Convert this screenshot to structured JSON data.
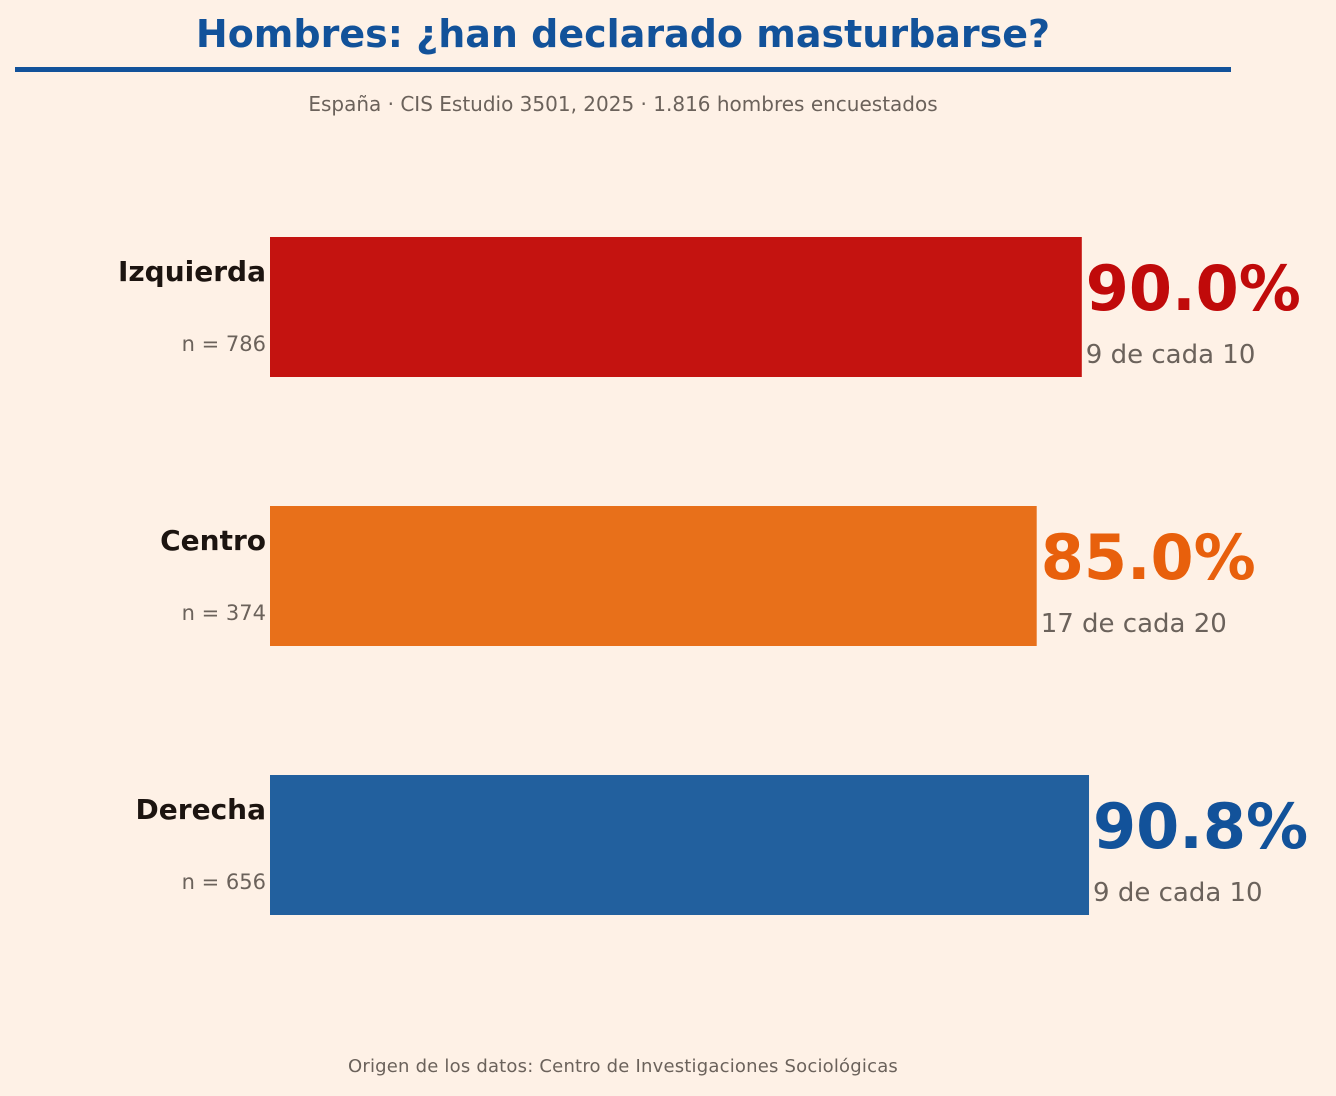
{
  "title": "Hombres: ¿han declarado masturbarse?",
  "subtitle": "España · CIS Estudio 3501, 2025 · 1.816 hombres encuestados",
  "source": "Origen de los datos: Centro de Investigaciones Sociológicas",
  "colors": {
    "accent": "#12529a",
    "background": "#fef1e6"
  },
  "chart_data": {
    "type": "bar",
    "orientation": "horizontal",
    "categories": [
      "Izquierda",
      "Centro",
      "Derecha"
    ],
    "values": [
      90.0,
      85.0,
      90.8
    ],
    "value_labels": [
      "90.0%",
      "85.0%",
      "90.8%"
    ],
    "sample_labels": [
      "n = 786",
      "n = 374",
      "n = 656"
    ],
    "fraction_labels": [
      "9 de cada 10",
      "17 de cada 20",
      "9 de cada 10"
    ],
    "bar_colors": [
      "#c41310",
      "#e8701a",
      "#22609e"
    ],
    "value_label_colors": [
      "#c00a0a",
      "#e8600c",
      "#12529a"
    ],
    "xlim": [
      0,
      100
    ],
    "grid": false,
    "legend": "none"
  }
}
